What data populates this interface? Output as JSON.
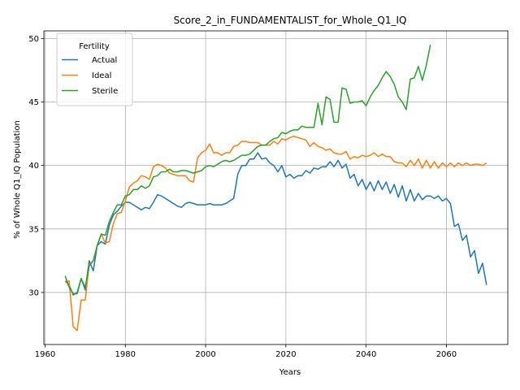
{
  "chart_data": {
    "type": "line",
    "title": "Score_2_in_FUNDAMENTALIST_for_Whole_Q1_IQ",
    "xlabel": "Years",
    "ylabel": "% of Whole Q1_IQ Population",
    "xlim": [
      1959.7,
      2075.3
    ],
    "ylim": [
      25.9,
      50.6
    ],
    "xticks": [
      1960,
      1980,
      2000,
      2020,
      2040,
      2060
    ],
    "yticks": [
      30,
      35,
      40,
      45,
      50
    ],
    "grid": true,
    "legend": {
      "title": "Fertility",
      "position": "top-left"
    },
    "series": [
      {
        "name": "Actual",
        "color": "#1f77b4",
        "x": [
          1965,
          1966,
          1967,
          1968,
          1969,
          1970,
          1971,
          1972,
          1973,
          1974,
          1975,
          1976,
          1977,
          1978,
          1979,
          1980,
          1981,
          1982,
          1983,
          1984,
          1985,
          1986,
          1987,
          1988,
          1989,
          1990,
          1991,
          1992,
          1993,
          1994,
          1995,
          1996,
          1997,
          1998,
          1999,
          2000,
          2001,
          2002,
          2003,
          2004,
          2005,
          2006,
          2007,
          2008,
          2009,
          2010,
          2011,
          2012,
          2013,
          2014,
          2015,
          2016,
          2017,
          2018,
          2019,
          2020,
          2021,
          2022,
          2023,
          2024,
          2025,
          2026,
          2027,
          2028,
          2029,
          2030,
          2031,
          2032,
          2033,
          2034,
          2035,
          2036,
          2037,
          2038,
          2039,
          2040,
          2041,
          2042,
          2043,
          2044,
          2045,
          2046,
          2047,
          2048,
          2049,
          2050,
          2051,
          2052,
          2053,
          2054,
          2055,
          2056,
          2057,
          2058,
          2059,
          2060,
          2061,
          2062,
          2063,
          2064,
          2065,
          2066,
          2067,
          2068,
          2069,
          2070
        ],
        "values": [
          30.9,
          30.6,
          29.8,
          30.0,
          31.1,
          30.2,
          32.5,
          31.7,
          33.7,
          34.0,
          33.8,
          35.3,
          36.1,
          36.4,
          36.8,
          37.1,
          37.1,
          36.9,
          36.7,
          36.5,
          36.7,
          36.6,
          37.1,
          37.7,
          37.6,
          37.4,
          37.2,
          37.0,
          36.8,
          36.7,
          37.0,
          37.1,
          37.0,
          36.9,
          36.9,
          36.9,
          37.0,
          36.9,
          36.9,
          36.9,
          37.0,
          37.2,
          37.4,
          39.3,
          40.0,
          40.0,
          40.5,
          40.5,
          41.0,
          40.5,
          40.6,
          40.2,
          40.0,
          39.5,
          40.0,
          39.1,
          39.3,
          39.0,
          39.2,
          39.2,
          39.6,
          39.4,
          39.8,
          39.7,
          39.9,
          39.9,
          40.3,
          39.9,
          40.4,
          39.8,
          40.1,
          39.0,
          39.3,
          38.4,
          38.9,
          38.1,
          38.7,
          38.0,
          38.8,
          38.1,
          38.7,
          37.8,
          38.5,
          37.5,
          38.4,
          37.2,
          38.1,
          37.2,
          37.8,
          37.3,
          37.6,
          37.6,
          37.4,
          37.6,
          37.2,
          37.4,
          37.0,
          35.2,
          35.4,
          34.1,
          34.5,
          32.8,
          33.3,
          31.5,
          32.3,
          30.6
        ]
      },
      {
        "name": "Ideal",
        "color": "#ff7f0e",
        "x": [
          1965,
          1966,
          1967,
          1968,
          1969,
          1970,
          1971,
          1972,
          1973,
          1974,
          1975,
          1976,
          1977,
          1978,
          1979,
          1980,
          1981,
          1982,
          1983,
          1984,
          1985,
          1986,
          1987,
          1988,
          1989,
          1990,
          1991,
          1992,
          1993,
          1994,
          1995,
          1996,
          1997,
          1998,
          1999,
          2000,
          2001,
          2002,
          2003,
          2004,
          2005,
          2006,
          2007,
          2008,
          2009,
          2010,
          2011,
          2012,
          2013,
          2014,
          2015,
          2016,
          2017,
          2018,
          2019,
          2020,
          2021,
          2022,
          2023,
          2024,
          2025,
          2026,
          2027,
          2028,
          2029,
          2030,
          2031,
          2032,
          2033,
          2034,
          2035,
          2036,
          2037,
          2038,
          2039,
          2040,
          2041,
          2042,
          2043,
          2044,
          2045,
          2046,
          2047,
          2048,
          2049,
          2050,
          2051,
          2052,
          2053,
          2054,
          2055,
          2056,
          2057,
          2058,
          2059,
          2060,
          2061,
          2062,
          2063,
          2064,
          2065,
          2066,
          2067,
          2068,
          2069,
          2070
        ],
        "values": [
          30.8,
          30.9,
          27.3,
          27.0,
          29.4,
          29.4,
          32.2,
          32.5,
          33.7,
          34.6,
          33.9,
          34.0,
          35.4,
          36.2,
          36.3,
          37.2,
          38.3,
          38.6,
          38.8,
          39.2,
          39.1,
          38.9,
          39.9,
          40.1,
          40.0,
          39.8,
          39.4,
          39.3,
          39.2,
          39.2,
          39.2,
          38.8,
          38.7,
          40.6,
          41.0,
          41.2,
          41.7,
          41.0,
          41.0,
          40.8,
          41.0,
          41.0,
          41.5,
          41.6,
          41.9,
          41.9,
          41.8,
          41.8,
          41.8,
          41.6,
          41.6,
          41.6,
          41.9,
          41.7,
          42.1,
          42.0,
          42.2,
          42.3,
          42.2,
          42.1,
          42.0,
          41.5,
          41.8,
          41.5,
          41.4,
          41.2,
          41.3,
          41.0,
          40.9,
          40.9,
          41.1,
          40.5,
          40.7,
          40.6,
          40.8,
          40.7,
          40.8,
          41.0,
          40.7,
          40.9,
          40.7,
          40.7,
          40.3,
          40.2,
          40.2,
          39.9,
          40.4,
          40.0,
          40.5,
          39.8,
          40.4,
          39.8,
          40.3,
          39.8,
          40.2,
          39.9,
          40.2,
          39.9,
          40.2,
          40.0,
          40.2,
          40.0,
          40.1,
          40.1,
          40.0,
          40.2
        ]
      },
      {
        "name": "Sterile",
        "color": "#2ca02c",
        "x": [
          1965,
          1966,
          1967,
          1968,
          1969,
          1970,
          1971,
          1972,
          1973,
          1974,
          1975,
          1976,
          1977,
          1978,
          1979,
          1980,
          1981,
          1982,
          1983,
          1984,
          1985,
          1986,
          1987,
          1988,
          1989,
          1990,
          1991,
          1992,
          1993,
          1994,
          1995,
          1996,
          1997,
          1998,
          1999,
          2000,
          2001,
          2002,
          2003,
          2004,
          2005,
          2006,
          2007,
          2008,
          2009,
          2010,
          2011,
          2012,
          2013,
          2014,
          2015,
          2016,
          2017,
          2018,
          2019,
          2020,
          2021,
          2022,
          2023,
          2024,
          2025,
          2026,
          2027,
          2028,
          2029,
          2030,
          2031,
          2032,
          2033,
          2034,
          2035,
          2036,
          2037,
          2038,
          2039,
          2040,
          2041,
          2042,
          2043,
          2044,
          2045,
          2046,
          2047,
          2048,
          2049,
          2050,
          2051,
          2052,
          2053,
          2054,
          2055,
          2056
        ],
        "values": [
          31.3,
          30.4,
          29.9,
          29.9,
          31.1,
          30.4,
          32.1,
          32.5,
          33.7,
          34.6,
          34.5,
          35.6,
          36.3,
          36.9,
          36.9,
          37.6,
          37.7,
          38.1,
          38.1,
          38.4,
          38.2,
          38.4,
          39.1,
          39.2,
          39.5,
          39.5,
          39.7,
          39.5,
          39.5,
          39.6,
          39.6,
          39.5,
          39.4,
          39.5,
          39.6,
          39.9,
          40.0,
          39.9,
          40.1,
          40.3,
          40.4,
          40.3,
          40.4,
          40.6,
          40.8,
          40.8,
          40.9,
          41.2,
          41.5,
          41.6,
          41.6,
          41.9,
          42.1,
          42.2,
          42.6,
          42.5,
          42.7,
          42.8,
          42.8,
          43.1,
          43.0,
          43.0,
          43.0,
          44.9,
          43.2,
          45.4,
          45.2,
          43.4,
          43.4,
          46.1,
          46.0,
          44.9,
          45.0,
          45.0,
          45.1,
          44.7,
          45.4,
          45.9,
          46.3,
          46.9,
          47.4,
          47.0,
          46.4,
          45.4,
          45.0,
          44.4,
          46.8,
          46.9,
          47.8,
          46.7,
          47.9,
          49.5
        ]
      }
    ]
  }
}
